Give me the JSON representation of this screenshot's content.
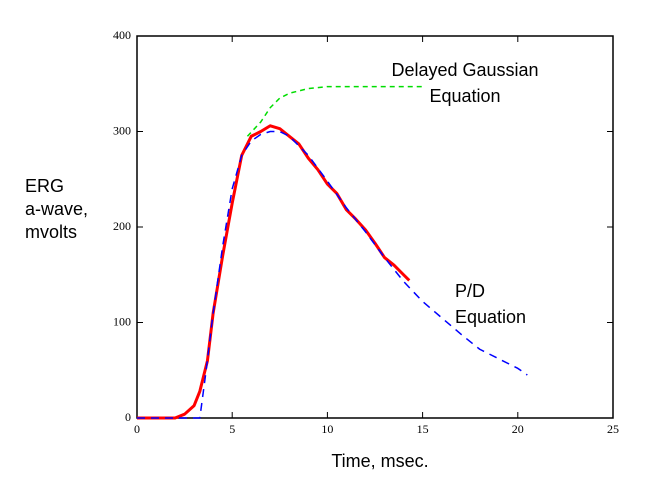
{
  "chart_data": {
    "type": "line",
    "ylabel": [
      "ERG",
      "a-wave,",
      "mvolts"
    ],
    "xlabel": "Time, msec.",
    "annotations": [
      [
        "Delayed Gaussian",
        "Equation"
      ],
      [
        "P/D",
        "Equation"
      ]
    ],
    "xlim": [
      0,
      25
    ],
    "xticks": [
      0,
      5,
      10,
      15,
      20,
      25
    ],
    "ylim": [
      0,
      400
    ],
    "yticks": [
      0,
      100,
      200,
      300,
      400
    ],
    "series": [
      {
        "color": "#ff0000",
        "dash": "none",
        "width": 3,
        "x": [
          0,
          1,
          2,
          2.5,
          3,
          3.3,
          3.7,
          4,
          4.5,
          5,
          5.5,
          6,
          6.5,
          7,
          7.5,
          8,
          8.5,
          9,
          9.5,
          10,
          10.5,
          11,
          11.5,
          12,
          12.5,
          13,
          13.5,
          14,
          14.3
        ],
        "values": [
          0,
          0,
          0,
          4,
          13,
          28,
          60,
          110,
          170,
          225,
          275,
          295,
          300,
          306,
          303,
          295,
          287,
          272,
          260,
          245,
          235,
          218,
          208,
          197,
          183,
          168,
          160,
          150,
          144
        ]
      },
      {
        "color": "#0000ff",
        "dash": "8,6",
        "width": 1.5,
        "x": [
          0,
          1,
          2,
          3,
          3.3,
          3.6,
          4,
          4.5,
          5,
          5.5,
          6,
          6.5,
          7,
          7.5,
          8,
          9,
          10,
          11,
          12,
          13,
          14,
          15,
          16,
          17,
          18,
          19,
          20,
          20.5
        ],
        "values": [
          0,
          0,
          0,
          0,
          0,
          45,
          110,
          180,
          240,
          275,
          290,
          297,
          300,
          300,
          295,
          275,
          248,
          220,
          195,
          168,
          143,
          122,
          105,
          88,
          72,
          62,
          52,
          45
        ]
      },
      {
        "color": "#00dd00",
        "dash": "5,4",
        "width": 1.5,
        "x": [
          5.8,
          6.5,
          7,
          7.5,
          8,
          9,
          10,
          11,
          12,
          13,
          14,
          15
        ],
        "values": [
          295,
          310,
          325,
          335,
          340,
          345,
          347,
          347,
          347,
          347,
          347,
          347
        ]
      }
    ]
  }
}
